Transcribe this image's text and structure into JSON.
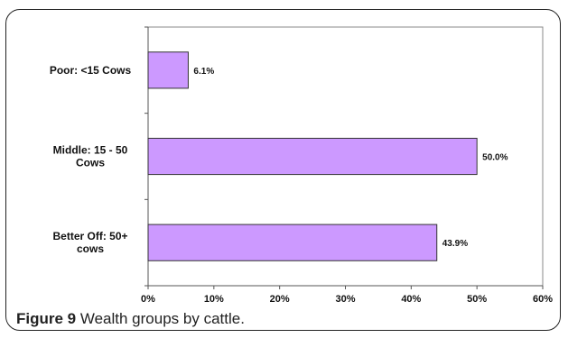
{
  "caption": {
    "figure_label": "Figure 9",
    "text": "Wealth groups by cattle."
  },
  "chart_data": {
    "type": "bar",
    "orientation": "horizontal",
    "categories": [
      [
        "Poor:   <15 Cows"
      ],
      [
        "Middle: 15 - 50",
        "Cows"
      ],
      [
        "Better Off:  50+",
        "cows"
      ]
    ],
    "values": [
      6.1,
      50.0,
      43.9
    ],
    "value_labels": [
      "6.1%",
      "50.0%",
      "43.9%"
    ],
    "xlim": [
      0,
      60
    ],
    "xticks": [
      0,
      10,
      20,
      30,
      40,
      50,
      60
    ],
    "xtick_labels": [
      "0%",
      "10%",
      "20%",
      "30%",
      "40%",
      "50%",
      "60%"
    ],
    "xlabel": "",
    "ylabel": "",
    "title": "",
    "grid": false,
    "bar_color": "#CC99FF",
    "bar_edge_color": "#333333"
  }
}
